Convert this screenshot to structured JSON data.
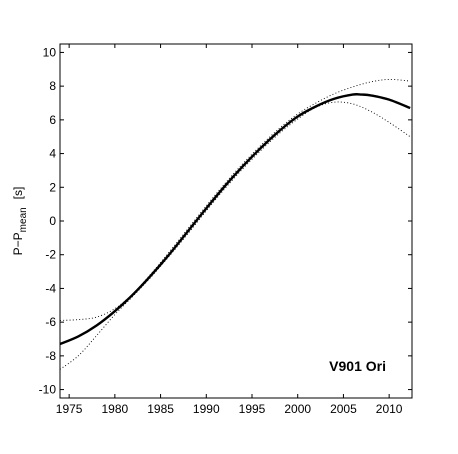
{
  "chart_data": {
    "type": "line",
    "title": "",
    "xlabel": "",
    "ylabel_main": "P−P",
    "ylabel_sub": "mean",
    "ylabel_unit": "[s]",
    "annotation": "V901 Ori",
    "xlim": [
      1974,
      2012.5
    ],
    "ylim": [
      -10.5,
      10.5
    ],
    "xticks": [
      1975,
      1980,
      1985,
      1990,
      1995,
      2000,
      2005,
      2010
    ],
    "yticks": [
      -10,
      -8,
      -6,
      -4,
      -2,
      0,
      2,
      4,
      6,
      8,
      10
    ],
    "grid": false,
    "legend": "none",
    "series": [
      {
        "style": "solid",
        "x": [
          1974,
          1976,
          1978,
          1980,
          1982,
          1984,
          1986,
          1988,
          1990,
          1992,
          1994,
          1996,
          1998,
          2000,
          2002,
          2004,
          2006,
          2007,
          2008,
          2010,
          2012.3
        ],
        "y": [
          -7.3,
          -6.85,
          -6.2,
          -5.35,
          -4.35,
          -3.2,
          -1.95,
          -0.6,
          0.75,
          2.05,
          3.25,
          4.35,
          5.35,
          6.2,
          6.8,
          7.25,
          7.5,
          7.5,
          7.45,
          7.2,
          6.7
        ]
      },
      {
        "style": "dotted",
        "x": [
          1974,
          1976,
          1978,
          1980,
          1982,
          1984,
          1986,
          1988,
          1990,
          1992,
          1994,
          1996,
          1998,
          2000,
          2002,
          2004,
          2006,
          2008,
          2010,
          2012.3
        ],
        "y": [
          -5.9,
          -5.85,
          -5.7,
          -5.2,
          -4.3,
          -3.1,
          -1.8,
          -0.45,
          0.9,
          2.2,
          3.4,
          4.5,
          5.5,
          6.35,
          7.0,
          7.55,
          7.95,
          8.25,
          8.4,
          8.3
        ]
      },
      {
        "style": "dotted",
        "x": [
          1974,
          1976,
          1978,
          1980,
          1982,
          1984,
          1986,
          1988,
          1990,
          1992,
          1994,
          1996,
          1998,
          2000,
          2002,
          2004,
          2006,
          2008,
          2010,
          2012.3
        ],
        "y": [
          -8.8,
          -8.0,
          -6.8,
          -5.55,
          -4.45,
          -3.3,
          -2.05,
          -0.75,
          0.6,
          1.9,
          3.1,
          4.2,
          5.2,
          6.05,
          6.75,
          7.05,
          6.95,
          6.5,
          5.85,
          5.0
        ]
      }
    ]
  }
}
